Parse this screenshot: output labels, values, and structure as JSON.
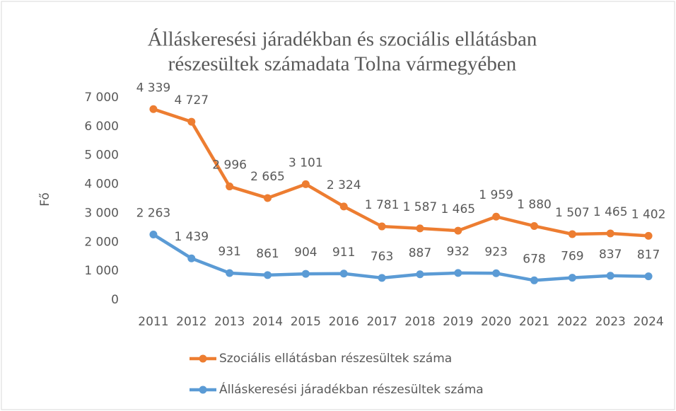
{
  "chart_data": {
    "type": "line",
    "stacked": true,
    "title": [
      "Álláskeresési járadékban és szociális ellátásban",
      "részesültek számadata Tolna vármegyében"
    ],
    "ylabel": "Fő",
    "categories": [
      "2011",
      "2012",
      "2013",
      "2014",
      "2015",
      "2016",
      "2017",
      "2018",
      "2019",
      "2020",
      "2021",
      "2022",
      "2023",
      "2024"
    ],
    "series": [
      {
        "name": "Szociális ellátásban részesültek száma",
        "color": "#ed7d31",
        "values": [
          4339,
          4727,
          2996,
          2665,
          3101,
          2324,
          1781,
          1587,
          1465,
          1959,
          1880,
          1507,
          1465,
          1402
        ],
        "value_labels": [
          "4 339",
          "4 727",
          "2 996",
          "2 665",
          "3 101",
          "2 324",
          "1 781",
          "1 587",
          "1 465",
          "1 959",
          "1 880",
          "1 507",
          "1 465",
          "1 402"
        ]
      },
      {
        "name": "Álláskeresési járadékban részesültek száma",
        "color": "#5b9bd5",
        "values": [
          2263,
          1439,
          931,
          861,
          904,
          911,
          763,
          887,
          932,
          923,
          678,
          769,
          837,
          817
        ],
        "value_labels": [
          "2 263",
          "1 439",
          "931",
          "861",
          "904",
          "911",
          "763",
          "887",
          "932",
          "923",
          "678",
          "769",
          "837",
          "817"
        ]
      }
    ],
    "ylim": [
      0,
      7000
    ],
    "yticks": [
      0,
      {
        "value": 1000,
        "label": "1 000"
      },
      {
        "value": 2000,
        "label": "2 000"
      },
      {
        "value": 3000,
        "label": "3 000"
      },
      {
        "value": 4000,
        "label": "4 000"
      },
      {
        "value": 5000,
        "label": "5 000"
      },
      {
        "value": 6000,
        "label": "6 000"
      },
      {
        "value": 7000,
        "label": "7 000"
      }
    ],
    "grid": false,
    "legend": "bottom"
  }
}
